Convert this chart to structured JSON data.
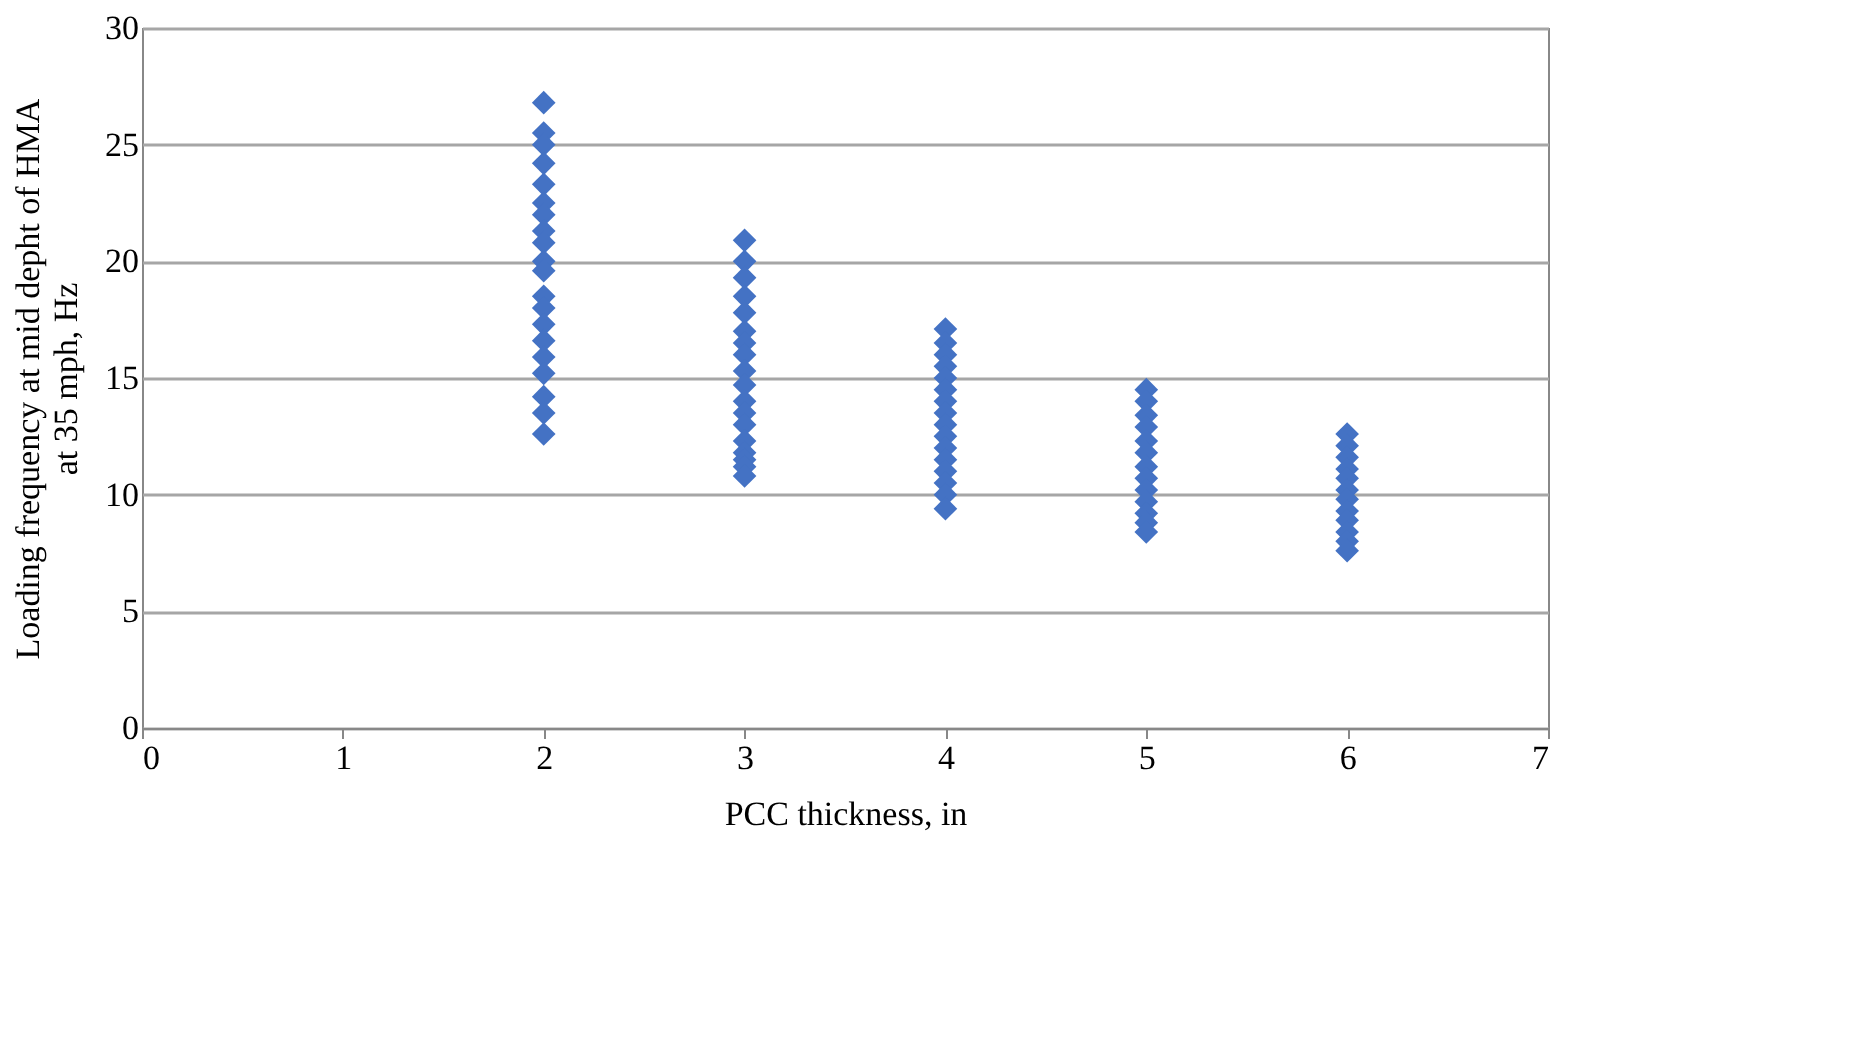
{
  "chart_data": {
    "type": "scatter",
    "xlabel": "PCC thickness, in",
    "ylabel": "Loading frequency at mid depht of HMA\nat 35 mph, Hz",
    "x": [
      2,
      2,
      2,
      2,
      2,
      2,
      2,
      2,
      2,
      2,
      2,
      2,
      2,
      2,
      2,
      2,
      2,
      2,
      2,
      2,
      3,
      3,
      3,
      3,
      3,
      3,
      3,
      3,
      3,
      3,
      3,
      3,
      3,
      3,
      3,
      3,
      3,
      3,
      4,
      4,
      4,
      4,
      4,
      4,
      4,
      4,
      4,
      4,
      4,
      4,
      4,
      4,
      4,
      4,
      5,
      5,
      5,
      5,
      5,
      5,
      5,
      5,
      5,
      5,
      5,
      5,
      5,
      6,
      6,
      6,
      6,
      6,
      6,
      6,
      6,
      6,
      6,
      6,
      6
    ],
    "values": [
      26.8,
      25.5,
      25.0,
      24.2,
      23.3,
      22.5,
      22.0,
      21.3,
      20.8,
      20.0,
      19.6,
      18.5,
      18.0,
      17.3,
      16.6,
      15.9,
      15.2,
      14.2,
      13.5,
      12.6,
      20.9,
      20.0,
      19.3,
      18.5,
      17.8,
      17.0,
      16.5,
      16.0,
      15.3,
      14.7,
      14.0,
      13.5,
      13.0,
      12.3,
      11.8,
      11.5,
      11.2,
      10.8,
      17.1,
      16.5,
      16.0,
      15.5,
      15.0,
      14.5,
      14.0,
      13.5,
      13.0,
      12.5,
      12.0,
      11.5,
      11.0,
      10.5,
      10.0,
      9.4,
      14.5,
      14.0,
      13.4,
      12.9,
      12.3,
      11.8,
      11.2,
      10.7,
      10.2,
      9.7,
      9.2,
      8.8,
      8.4,
      12.6,
      12.1,
      11.6,
      11.1,
      10.7,
      10.2,
      9.8,
      9.3,
      8.9,
      8.4,
      8.0,
      7.6
    ],
    "color": "#4472c4",
    "marker": "diamond",
    "xlim": [
      0,
      7
    ],
    "xticks": [
      0,
      1,
      2,
      3,
      4,
      5,
      6,
      7
    ],
    "ylim": [
      0,
      30
    ],
    "yticks": [
      0,
      5,
      10,
      15,
      20,
      25,
      30
    ],
    "grid": "y"
  }
}
